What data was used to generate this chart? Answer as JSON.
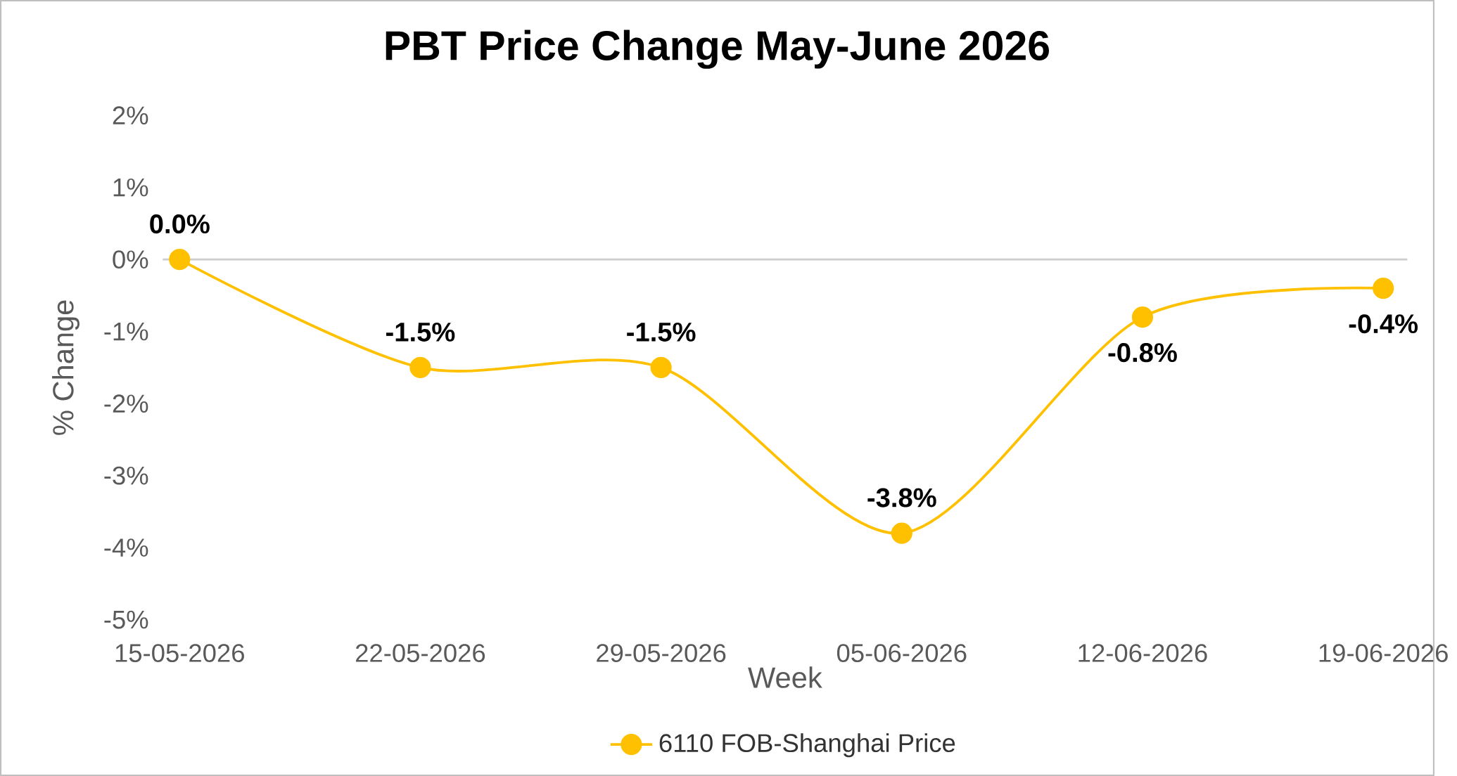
{
  "chart_data": {
    "type": "line",
    "title": "PBT Price Change May-June 2026",
    "xlabel": "Week",
    "ylabel": "% Change",
    "categories": [
      "15-05-2026",
      "22-05-2026",
      "29-05-2026",
      "05-06-2026",
      "12-06-2026",
      "19-06-2026"
    ],
    "series": [
      {
        "name": "6110 FOB-Shanghai Price",
        "color": "#ffc000",
        "values": [
          0.0,
          -1.5,
          -1.5,
          -3.8,
          -0.8,
          -0.4
        ],
        "value_labels": [
          "0.0%",
          "-1.5%",
          "-1.5%",
          "-3.8%",
          "-0.8%",
          "-0.4%"
        ]
      }
    ],
    "ylim": [
      -5,
      2
    ],
    "yticks": [
      {
        "value": 2,
        "label": "2%"
      },
      {
        "value": 1,
        "label": "1%"
      },
      {
        "value": 0,
        "label": "0%"
      },
      {
        "value": -1,
        "label": "-1%"
      },
      {
        "value": -2,
        "label": "-2%"
      },
      {
        "value": -3,
        "label": "-3%"
      },
      {
        "value": -4,
        "label": "-4%"
      },
      {
        "value": -5,
        "label": "-5%"
      }
    ],
    "marker": "circle",
    "legend": "bottom"
  }
}
